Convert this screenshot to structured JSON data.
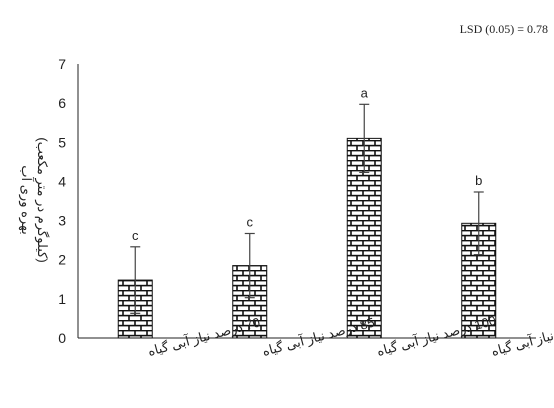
{
  "chart_data": {
    "type": "bar",
    "annotation": "LSD (0.05) = 0.78",
    "ylabel_line1": "بهره وری آب",
    "ylabel_line2": "(کیلوگرم در متر مکعب)",
    "ylim": [
      0,
      7
    ],
    "yticks": [
      "0",
      "1",
      "2",
      "3",
      "4",
      "5",
      "6",
      "7"
    ],
    "categories": [
      "70 درصد نیاز آبی گیاه",
      "85 درصد نیاز آبی گیاه",
      "100 درصد نیاز آبی گیاه",
      "125 درصد نیاز آبی گیاه"
    ],
    "values": [
      1.48,
      1.85,
      5.1,
      2.93
    ],
    "errors": [
      0.85,
      0.82,
      0.87,
      0.8
    ],
    "letters": [
      "c",
      "c",
      "a",
      "b"
    ],
    "pattern": "brick",
    "grid": false
  }
}
